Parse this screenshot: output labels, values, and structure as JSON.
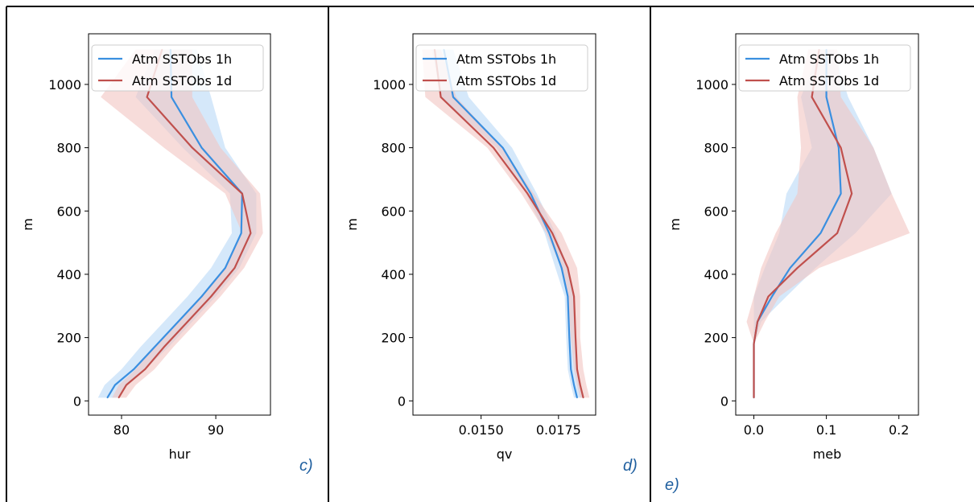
{
  "figure": {
    "panels": [
      {
        "letter": "c)"
      },
      {
        "letter": "d)"
      },
      {
        "letter": "e)"
      }
    ]
  },
  "chart_data": [
    {
      "type": "line",
      "panel": "c)",
      "xlabel": "hur",
      "ylabel": "m",
      "xlim": [
        76.5,
        95.8
      ],
      "ylim": [
        -45,
        1160
      ],
      "xticks": [
        80,
        90
      ],
      "xtick_labels": [
        "80",
        "90"
      ],
      "yticks": [
        0,
        200,
        400,
        600,
        800,
        1000
      ],
      "ytick_labels": [
        "0",
        "200",
        "400",
        "600",
        "800",
        "1000"
      ],
      "legend": {
        "placement": "top-left"
      },
      "series": [
        {
          "name": "Atm SSTObs 1h",
          "color": "#3a8fe0",
          "band_color": "#b9d9f7",
          "points": [
            {
              "x": 78.5,
              "y": 10
            },
            {
              "x": 79.3,
              "y": 50
            },
            {
              "x": 81.3,
              "y": 100
            },
            {
              "x": 83.5,
              "y": 170
            },
            {
              "x": 86,
              "y": 250
            },
            {
              "x": 88.5,
              "y": 330
            },
            {
              "x": 91,
              "y": 420
            },
            {
              "x": 92.7,
              "y": 530
            },
            {
              "x": 92.8,
              "y": 655
            },
            {
              "x": 88.5,
              "y": 800
            },
            {
              "x": 85.3,
              "y": 960
            },
            {
              "x": 85.2,
              "y": 1110
            }
          ],
          "lower": [
            77.5,
            78.2,
            80,
            82,
            84.5,
            87,
            89.5,
            91.7,
            91.5,
            86.5,
            81.5,
            83.5
          ],
          "upper": [
            79.5,
            80.5,
            82.5,
            85,
            87.5,
            90,
            92.5,
            94.3,
            94.3,
            91,
            89.5,
            88
          ]
        },
        {
          "name": "Atm SSTObs 1d",
          "color": "#c0504d",
          "band_color": "#f2c4c2",
          "points": [
            {
              "x": 79.7,
              "y": 10
            },
            {
              "x": 80.5,
              "y": 50
            },
            {
              "x": 82.5,
              "y": 100
            },
            {
              "x": 84.5,
              "y": 170
            },
            {
              "x": 87,
              "y": 250
            },
            {
              "x": 89.5,
              "y": 330
            },
            {
              "x": 92,
              "y": 420
            },
            {
              "x": 93.7,
              "y": 530
            },
            {
              "x": 92.8,
              "y": 655
            },
            {
              "x": 87.5,
              "y": 800
            },
            {
              "x": 82.7,
              "y": 960
            },
            {
              "x": 84.3,
              "y": 1110
            }
          ],
          "lower": [
            79,
            79.7,
            81.5,
            83.5,
            86,
            88.5,
            91,
            92.8,
            91,
            84.5,
            77.8,
            81.5
          ],
          "upper": [
            80.5,
            81.5,
            83.5,
            85.5,
            88,
            90.5,
            93,
            95,
            94.7,
            90.5,
            87.5,
            87.5
          ]
        }
      ]
    },
    {
      "type": "line",
      "panel": "d)",
      "xlabel": "qv",
      "ylabel": "m",
      "xlim": [
        0.0128,
        0.0187
      ],
      "ylim": [
        -45,
        1160
      ],
      "xticks": [
        0.015,
        0.0175
      ],
      "xtick_labels": [
        "0.0150",
        "0.0175"
      ],
      "yticks": [
        0,
        200,
        400,
        600,
        800,
        1000
      ],
      "ytick_labels": [
        "0",
        "200",
        "400",
        "600",
        "800",
        "1000"
      ],
      "legend": {
        "placement": "top-left"
      },
      "series": [
        {
          "name": "Atm SSTObs 1h",
          "color": "#3a8fe0",
          "band_color": "#b9d9f7",
          "points": [
            {
              "x": 0.0181,
              "y": 10
            },
            {
              "x": 0.018,
              "y": 50
            },
            {
              "x": 0.0179,
              "y": 100
            },
            {
              "x": 0.01785,
              "y": 200
            },
            {
              "x": 0.0178,
              "y": 330
            },
            {
              "x": 0.0176,
              "y": 420
            },
            {
              "x": 0.0172,
              "y": 530
            },
            {
              "x": 0.0166,
              "y": 655
            },
            {
              "x": 0.0157,
              "y": 800
            },
            {
              "x": 0.0141,
              "y": 960
            },
            {
              "x": 0.0138,
              "y": 1110
            }
          ],
          "lower": [
            0.018,
            0.0179,
            0.0178,
            0.01775,
            0.0177,
            0.0174,
            0.01705,
            0.01645,
            0.0155,
            0.0137,
            0.0134
          ],
          "upper": [
            0.0183,
            0.0182,
            0.0181,
            0.01805,
            0.018,
            0.0178,
            0.0174,
            0.0168,
            0.016,
            0.0146,
            0.0141
          ]
        },
        {
          "name": "Atm SSTObs 1d",
          "color": "#c0504d",
          "band_color": "#f2c4c2",
          "points": [
            {
              "x": 0.0183,
              "y": 10
            },
            {
              "x": 0.0182,
              "y": 50
            },
            {
              "x": 0.0181,
              "y": 100
            },
            {
              "x": 0.01805,
              "y": 200
            },
            {
              "x": 0.018,
              "y": 330
            },
            {
              "x": 0.0178,
              "y": 420
            },
            {
              "x": 0.0173,
              "y": 530
            },
            {
              "x": 0.0165,
              "y": 655
            },
            {
              "x": 0.0154,
              "y": 800
            },
            {
              "x": 0.0137,
              "y": 960
            },
            {
              "x": 0.0135,
              "y": 1110
            }
          ],
          "lower": [
            0.0182,
            0.0181,
            0.018,
            0.0179,
            0.0178,
            0.0176,
            0.0171,
            0.0163,
            0.0152,
            0.0132,
            0.0131
          ],
          "upper": [
            0.0185,
            0.0184,
            0.0183,
            0.0182,
            0.0182,
            0.0181,
            0.0176,
            0.0167,
            0.0157,
            0.0142,
            0.0137
          ]
        }
      ]
    },
    {
      "type": "line",
      "panel": "e)",
      "xlabel": "meb",
      "ylabel": "m",
      "xlim": [
        -0.025,
        0.227
      ],
      "ylim": [
        -45,
        1160
      ],
      "xticks": [
        0,
        0.1,
        0.2
      ],
      "xtick_labels": [
        "0.0",
        "0.1",
        "0.2"
      ],
      "yticks": [
        0,
        200,
        400,
        600,
        800,
        1000
      ],
      "ytick_labels": [
        "0",
        "200",
        "400",
        "600",
        "800",
        "1000"
      ],
      "legend": {
        "placement": "top-left"
      },
      "series": [
        {
          "name": "Atm SSTObs 1h",
          "color": "#3a8fe0",
          "band_color": "#b9d9f7",
          "points": [
            {
              "x": 0,
              "y": 10
            },
            {
              "x": 0,
              "y": 100
            },
            {
              "x": 0,
              "y": 180
            },
            {
              "x": 0.005,
              "y": 250
            },
            {
              "x": 0.025,
              "y": 330
            },
            {
              "x": 0.05,
              "y": 420
            },
            {
              "x": 0.092,
              "y": 530
            },
            {
              "x": 0.12,
              "y": 655
            },
            {
              "x": 0.117,
              "y": 800
            },
            {
              "x": 0.1,
              "y": 960
            },
            {
              "x": 0.1,
              "y": 1110
            }
          ],
          "lower": [
            0,
            0,
            0,
            0,
            0,
            0.015,
            0.035,
            0.045,
            0.08,
            0.065,
            0.09
          ],
          "upper": [
            0,
            0,
            0,
            0.01,
            0.045,
            0.085,
            0.14,
            0.19,
            0.165,
            0.13,
            0.11
          ]
        },
        {
          "name": "Atm SSTObs 1d",
          "color": "#c0504d",
          "band_color": "#f2c4c2",
          "points": [
            {
              "x": 0,
              "y": 10
            },
            {
              "x": 0,
              "y": 100
            },
            {
              "x": 0,
              "y": 180
            },
            {
              "x": 0.005,
              "y": 250
            },
            {
              "x": 0.02,
              "y": 330
            },
            {
              "x": 0.06,
              "y": 420
            },
            {
              "x": 0.115,
              "y": 530
            },
            {
              "x": 0.135,
              "y": 655
            },
            {
              "x": 0.12,
              "y": 800
            },
            {
              "x": 0.08,
              "y": 960
            },
            {
              "x": 0.09,
              "y": 1110
            }
          ],
          "lower": [
            0,
            0,
            0,
            -0.01,
            0,
            0.01,
            0.03,
            0.06,
            0.065,
            0.06,
            0.075
          ],
          "upper": [
            0,
            0,
            0,
            0.015,
            0.035,
            0.09,
            0.215,
            0.19,
            0.165,
            0.12,
            0.115
          ]
        }
      ]
    }
  ]
}
